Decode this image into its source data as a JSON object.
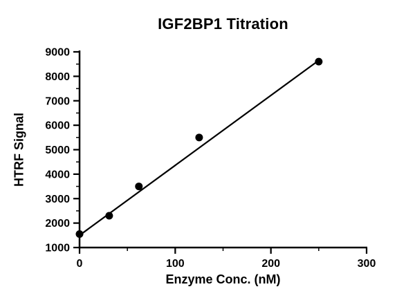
{
  "chart_data": {
    "type": "scatter",
    "title": "IGF2BP1 Titration",
    "xlabel": "Enzyme Conc. (nM)",
    "ylabel": "HTRF Signal",
    "xlim": [
      0,
      300
    ],
    "ylim": [
      1000,
      9000
    ],
    "x_ticks": [
      0,
      100,
      200,
      300
    ],
    "x_minor_ticks": [
      50,
      150,
      250
    ],
    "y_ticks": [
      1000,
      2000,
      3000,
      4000,
      5000,
      6000,
      7000,
      8000,
      9000
    ],
    "y_minor_ticks": [
      1500,
      2500,
      3500,
      4500,
      5500,
      6500,
      7500,
      8500
    ],
    "grid": false,
    "legend_position": "none",
    "point_color": "#000000",
    "line_color": "#000000",
    "background_color": "#ffffff",
    "points": [
      {
        "x": 0,
        "y": 1550
      },
      {
        "x": 31,
        "y": 2300
      },
      {
        "x": 62,
        "y": 3500
      },
      {
        "x": 125,
        "y": 5500
      },
      {
        "x": 250,
        "y": 8600
      }
    ],
    "fit_line": {
      "x1": 0,
      "y1": 1500,
      "x2": 250,
      "y2": 8650
    }
  }
}
